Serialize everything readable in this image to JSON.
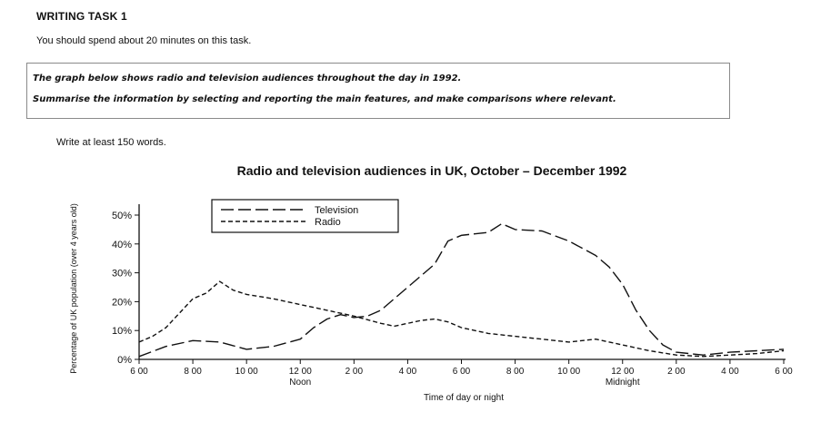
{
  "task": {
    "heading": "WRITING TASK 1",
    "instruction": "You should spend about 20 minutes on this task.",
    "prompt_line1": "The graph below shows radio and television audiences throughout the day in 1992.",
    "prompt_line2": "Summarise the information by selecting and reporting the main features, and make comparisons where relevant.",
    "word_count": "Write at least 150 words."
  },
  "chart_data": {
    "type": "line",
    "title": "Radio and television audiences in UK, October – December 1992",
    "xlabel": "Time of day or night",
    "ylabel": "Percentage of UK population (over 4 years old)",
    "ylim": [
      0,
      50
    ],
    "xlim": [
      6,
      30
    ],
    "x_ticks": [
      "6 00",
      "8 00",
      "10 00",
      "12 00",
      "2 00",
      "4 00",
      "6 00",
      "8 00",
      "10 00",
      "12 00",
      "2 00",
      "4 00",
      "6 00"
    ],
    "x_sublabels": {
      "12 00": "Noon",
      "24 00": "Midnight"
    },
    "y_ticks": [
      "0%",
      "10%",
      "20%",
      "30%",
      "40%",
      "50%"
    ],
    "grid": false,
    "legend_position": "top-left",
    "series": [
      {
        "name": "Television",
        "dash": "long-dash",
        "points": [
          [
            6,
            1
          ],
          [
            7,
            4.5
          ],
          [
            8,
            6.5
          ],
          [
            9,
            6
          ],
          [
            10,
            3.5
          ],
          [
            11,
            4.5
          ],
          [
            12,
            7
          ],
          [
            12.5,
            11
          ],
          [
            13,
            14
          ],
          [
            13.5,
            15.5
          ],
          [
            14,
            14.5
          ],
          [
            14.5,
            15
          ],
          [
            15,
            17
          ],
          [
            15.5,
            21
          ],
          [
            16,
            25
          ],
          [
            16.5,
            29
          ],
          [
            17,
            33
          ],
          [
            17.5,
            41
          ],
          [
            18,
            43
          ],
          [
            19,
            44
          ],
          [
            19.5,
            47
          ],
          [
            20,
            45
          ],
          [
            21,
            44.5
          ],
          [
            22,
            41
          ],
          [
            23,
            36
          ],
          [
            23.5,
            32
          ],
          [
            24,
            26
          ],
          [
            24.5,
            17
          ],
          [
            25,
            10
          ],
          [
            25.5,
            5
          ],
          [
            26,
            2.5
          ],
          [
            27,
            1.5
          ],
          [
            28,
            2.5
          ],
          [
            29,
            3
          ],
          [
            30,
            3.5
          ]
        ]
      },
      {
        "name": "Radio",
        "dash": "short-dash",
        "points": [
          [
            6,
            6
          ],
          [
            6.5,
            8
          ],
          [
            7,
            11
          ],
          [
            7.5,
            16
          ],
          [
            8,
            21
          ],
          [
            8.5,
            23
          ],
          [
            9,
            27
          ],
          [
            9.5,
            24
          ],
          [
            10,
            22.5
          ],
          [
            11,
            21
          ],
          [
            12,
            19
          ],
          [
            13,
            17
          ],
          [
            14,
            15
          ],
          [
            15,
            12.5
          ],
          [
            15.5,
            11.5
          ],
          [
            16,
            12.5
          ],
          [
            16.5,
            13.5
          ],
          [
            17,
            14
          ],
          [
            17.5,
            13
          ],
          [
            18,
            11
          ],
          [
            19,
            9
          ],
          [
            20,
            8
          ],
          [
            21,
            7
          ],
          [
            22,
            6
          ],
          [
            23,
            7
          ],
          [
            24,
            5
          ],
          [
            25,
            3
          ],
          [
            26,
            1.5
          ],
          [
            27,
            1
          ],
          [
            28,
            1.5
          ],
          [
            29,
            2
          ],
          [
            30,
            3
          ]
        ]
      }
    ]
  }
}
